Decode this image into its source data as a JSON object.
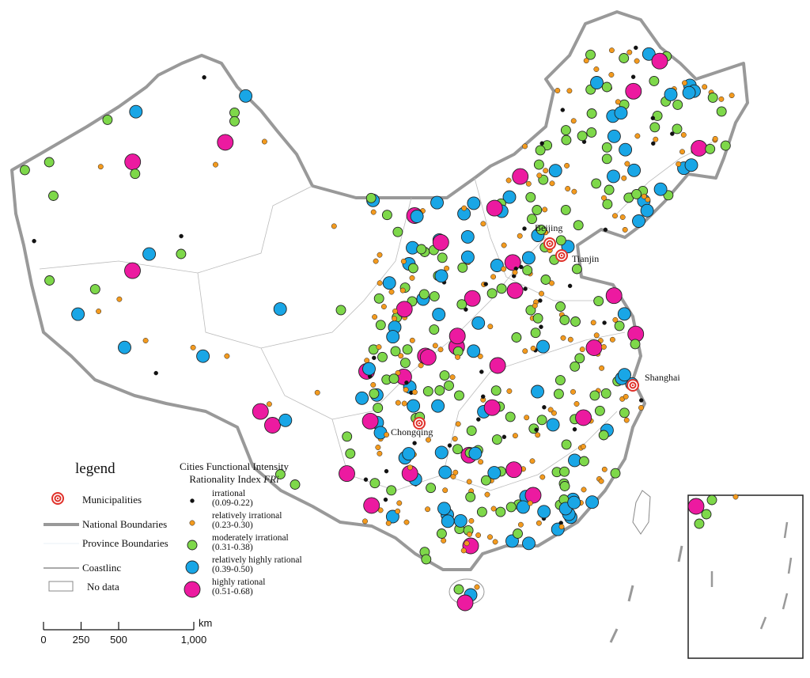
{
  "legend": {
    "title": "legend",
    "items": [
      {
        "label": "Municipalities"
      },
      {
        "label": "National Boundaries"
      },
      {
        "label": "Province Boundaries"
      },
      {
        "label": "Coastlinc"
      },
      {
        "label": "No data"
      }
    ]
  },
  "index_legend": {
    "title_line1": "Cities Functional Intensity",
    "title_line2": "Rationality Index",
    "title_symbol": "FRi",
    "classes": [
      {
        "name": "irrational",
        "range": "(0.09-0.22)",
        "color": "#111111"
      },
      {
        "name": "relatively irrational",
        "range": "(0.23-0.30)",
        "color": "#f39a1e"
      },
      {
        "name": "moderately irrational",
        "range": "(0.31-0.38)",
        "color": "#7ed84a"
      },
      {
        "name": "relatively highly rational",
        "range": "(0.39-0.50)",
        "color": "#19a6e6"
      },
      {
        "name": "highly rational",
        "range": "(0.51-0.68)",
        "color": "#ec1aa0"
      }
    ]
  },
  "municipalities": [
    {
      "label": "Beijing"
    },
    {
      "label": "Tianjin"
    },
    {
      "label": "Shanghai"
    },
    {
      "label": "Chongqing"
    }
  ],
  "scale_bar": {
    "unit": "km",
    "ticks": [
      0,
      250,
      500,
      {
        "value": 1000,
        "label": "1,000"
      }
    ]
  }
}
